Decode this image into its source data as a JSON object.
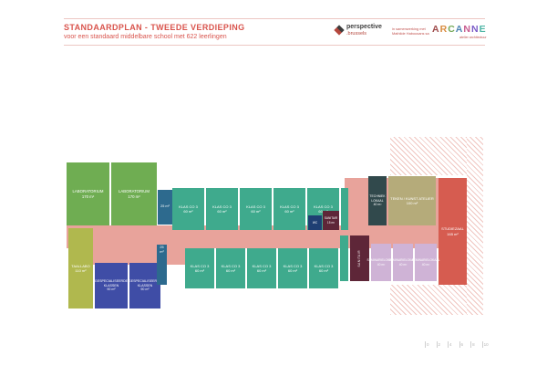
{
  "header": {
    "title": "STANDAARDPLAN - TWEEDE VERDIEPING",
    "subtitle": "voor een standaard middelbare school met 622 leerlingen"
  },
  "logos": {
    "perspective_name": "perspective",
    "perspective_sub": ".brussels",
    "collab_line1": "in samenwerking met",
    "collab_line2": "Mathilde Habousans sa",
    "arcanne_letters": [
      "A",
      "R",
      "C",
      "A",
      "N",
      "N",
      "E"
    ],
    "arcanne_colors": [
      "#9e4b4b",
      "#d98c3f",
      "#74a857",
      "#4f86b5",
      "#c75b8f",
      "#7a5bc7",
      "#4fb5a5"
    ],
    "arcanne_tagline": "atelier architectuur"
  },
  "plan": {
    "rooms": [
      {
        "name": "LABORATORIUM",
        "area": "170 m²"
      },
      {
        "name": "LABORATORIUM",
        "area": "170 m²"
      },
      {
        "name": "",
        "area": "25 m²"
      },
      {
        "name": "KLAS CO 3",
        "area": "60 m²"
      },
      {
        "name": "KLAS CO 3",
        "area": "60 m²"
      },
      {
        "name": "KLAS CO 3",
        "area": "60 m²"
      },
      {
        "name": "KLAS CO 3",
        "area": "60 m²"
      },
      {
        "name": "KLAS CO 3",
        "area": "60 m²"
      },
      {
        "name": "WC",
        "area": ""
      },
      {
        "name": "SANITAIR",
        "area": "15 m²"
      },
      {
        "name": "TECHNIEK LOKAAL",
        "area": "40 m²"
      },
      {
        "name": "TEKEN / KUNST ATELIER",
        "area": "100 m²"
      },
      {
        "name": "STUDIEZAAL",
        "area": "165 m²"
      },
      {
        "name": "TAALLABO",
        "area": "110 m²"
      },
      {
        "name": "GESPECIALISEERDE KLASSEN",
        "area": "90 m²"
      },
      {
        "name": "GESPECIALISEERDE KLASSEN",
        "area": "90 m²"
      },
      {
        "name": "",
        "area": "25 m²"
      },
      {
        "name": "KLAS CO 3",
        "area": "60 m²"
      },
      {
        "name": "KLAS CO 3",
        "area": "60 m²"
      },
      {
        "name": "KLAS CO 3",
        "area": "60 m²"
      },
      {
        "name": "KLAS CO 3",
        "area": "60 m²"
      },
      {
        "name": "KLAS CO 3",
        "area": "60 m²"
      },
      {
        "name": "SANITAIR",
        "area": ""
      },
      {
        "name": "SEMINARIELOKAAL",
        "area": "40 m²"
      },
      {
        "name": "SEMINARIELOKAAL",
        "area": "40 m²"
      },
      {
        "name": "SEMINARIELOKAAL",
        "area": "40 m²"
      }
    ]
  },
  "scale_ticks": [
    "0",
    "2",
    "4",
    "6",
    "8",
    "10"
  ]
}
